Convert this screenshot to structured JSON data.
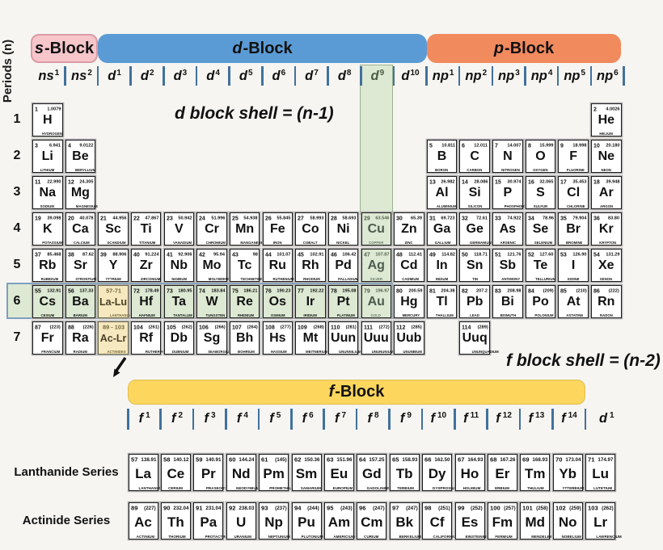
{
  "axis": {
    "periods_label": "Periods (n)",
    "period_numbers": [
      "1",
      "2",
      "3",
      "4",
      "5",
      "6",
      "7"
    ]
  },
  "block_headers": {
    "s": {
      "letter": "s",
      "suffix": "-Block"
    },
    "d": {
      "letter": "d",
      "suffix": "-Block"
    },
    "p": {
      "letter": "p",
      "suffix": "-Block"
    },
    "f": {
      "letter": "f",
      "suffix": "-Block"
    }
  },
  "annotations": {
    "d_shell": "d block shell = (n-1)",
    "f_shell": "f block shell = (n-2)"
  },
  "series": {
    "lanthanide_label": "Lanthanide Series",
    "actinide_label": "Actinide Series"
  },
  "orbital_row": [
    {
      "base": "ns",
      "sup": "1",
      "col": 1
    },
    {
      "base": "ns",
      "sup": "2",
      "col": 2
    },
    {
      "base": "d",
      "sup": "1",
      "col": 3
    },
    {
      "base": "d",
      "sup": "2",
      "col": 4
    },
    {
      "base": "d",
      "sup": "3",
      "col": 5
    },
    {
      "base": "d",
      "sup": "4",
      "col": 6
    },
    {
      "base": "d",
      "sup": "5",
      "col": 7
    },
    {
      "base": "d",
      "sup": "6",
      "col": 8
    },
    {
      "base": "d",
      "sup": "7",
      "col": 9
    },
    {
      "base": "d",
      "sup": "8",
      "col": 10
    },
    {
      "base": "d",
      "sup": "9",
      "col": 11,
      "hl": true
    },
    {
      "base": "d",
      "sup": "10",
      "col": 12
    },
    {
      "base": "np",
      "sup": "1",
      "col": 13
    },
    {
      "base": "np",
      "sup": "2",
      "col": 14
    },
    {
      "base": "np",
      "sup": "3",
      "col": 15
    },
    {
      "base": "np",
      "sup": "4",
      "col": 16
    },
    {
      "base": "np",
      "sup": "5",
      "col": 17
    },
    {
      "base": "np",
      "sup": "6",
      "col": 18
    }
  ],
  "f_orbital_row": [
    {
      "base": "f",
      "sup": "1"
    },
    {
      "base": "f",
      "sup": "2"
    },
    {
      "base": "f",
      "sup": "3"
    },
    {
      "base": "f",
      "sup": "4"
    },
    {
      "base": "f",
      "sup": "5"
    },
    {
      "base": "f",
      "sup": "6"
    },
    {
      "base": "f",
      "sup": "7"
    },
    {
      "base": "f",
      "sup": "8"
    },
    {
      "base": "f",
      "sup": "9"
    },
    {
      "base": "f",
      "sup": "10"
    },
    {
      "base": "f",
      "sup": "11"
    },
    {
      "base": "f",
      "sup": "12"
    },
    {
      "base": "f",
      "sup": "13"
    },
    {
      "base": "f",
      "sup": "14"
    },
    {
      "base": "d",
      "sup": "1",
      "outside": true
    }
  ],
  "elements": [
    {
      "z": "1",
      "mass": "1.0079",
      "sym": "H",
      "name": "HYDROGEN",
      "period": 1,
      "col": 1
    },
    {
      "z": "2",
      "mass": "4.0026",
      "sym": "He",
      "name": "HELIUM",
      "period": 1,
      "col": 18
    },
    {
      "z": "3",
      "mass": "6.941",
      "sym": "Li",
      "name": "LITHIUM",
      "period": 2,
      "col": 1
    },
    {
      "z": "4",
      "mass": "9.0122",
      "sym": "Be",
      "name": "BERYLLIUM",
      "period": 2,
      "col": 2
    },
    {
      "z": "5",
      "mass": "10.811",
      "sym": "B",
      "name": "BORON",
      "period": 2,
      "col": 13
    },
    {
      "z": "6",
      "mass": "12.011",
      "sym": "C",
      "name": "CARBON",
      "period": 2,
      "col": 14
    },
    {
      "z": "7",
      "mass": "14.007",
      "sym": "N",
      "name": "NITROGEN",
      "period": 2,
      "col": 15
    },
    {
      "z": "8",
      "mass": "15.999",
      "sym": "O",
      "name": "OXYGEN",
      "period": 2,
      "col": 16
    },
    {
      "z": "9",
      "mass": "18.998",
      "sym": "F",
      "name": "FLUORINE",
      "period": 2,
      "col": 17
    },
    {
      "z": "10",
      "mass": "20.180",
      "sym": "Ne",
      "name": "NEON",
      "period": 2,
      "col": 18
    },
    {
      "z": "11",
      "mass": "22.990",
      "sym": "Na",
      "name": "SODIUM",
      "period": 3,
      "col": 1
    },
    {
      "z": "12",
      "mass": "24.305",
      "sym": "Mg",
      "name": "MAGNESIUM",
      "period": 3,
      "col": 2
    },
    {
      "z": "13",
      "mass": "26.982",
      "sym": "Al",
      "name": "ALUMINIUM",
      "period": 3,
      "col": 13
    },
    {
      "z": "14",
      "mass": "28.086",
      "sym": "Si",
      "name": "SILICON",
      "period": 3,
      "col": 14
    },
    {
      "z": "15",
      "mass": "30.974",
      "sym": "P",
      "name": "PHOSPHORUS",
      "period": 3,
      "col": 15
    },
    {
      "z": "16",
      "mass": "32.065",
      "sym": "S",
      "name": "SULFUR",
      "period": 3,
      "col": 16
    },
    {
      "z": "17",
      "mass": "35.453",
      "sym": "Cl",
      "name": "CHLORINE",
      "period": 3,
      "col": 17
    },
    {
      "z": "18",
      "mass": "39.948",
      "sym": "Ar",
      "name": "ARGON",
      "period": 3,
      "col": 18
    },
    {
      "z": "19",
      "mass": "39.098",
      "sym": "K",
      "name": "POTASSIUM",
      "period": 4,
      "col": 1
    },
    {
      "z": "20",
      "mass": "40.078",
      "sym": "Ca",
      "name": "CALCIUM",
      "period": 4,
      "col": 2
    },
    {
      "z": "21",
      "mass": "44.956",
      "sym": "Sc",
      "name": "SCANDIUM",
      "period": 4,
      "col": 3
    },
    {
      "z": "22",
      "mass": "47.867",
      "sym": "Ti",
      "name": "TITANIUM",
      "period": 4,
      "col": 4
    },
    {
      "z": "23",
      "mass": "50.942",
      "sym": "V",
      "name": "VANADIUM",
      "period": 4,
      "col": 5
    },
    {
      "z": "24",
      "mass": "51.996",
      "sym": "Cr",
      "name": "CHROMIUM",
      "period": 4,
      "col": 6
    },
    {
      "z": "25",
      "mass": "54.938",
      "sym": "Mn",
      "name": "MANGANESE",
      "period": 4,
      "col": 7
    },
    {
      "z": "26",
      "mass": "55.845",
      "sym": "Fe",
      "name": "IRON",
      "period": 4,
      "col": 8
    },
    {
      "z": "27",
      "mass": "58.993",
      "sym": "Co",
      "name": "COBALT",
      "period": 4,
      "col": 9
    },
    {
      "z": "28",
      "mass": "58.693",
      "sym": "Ni",
      "name": "NICKEL",
      "period": 4,
      "col": 10
    },
    {
      "z": "29",
      "mass": "63.546",
      "sym": "Cu",
      "name": "COPPER",
      "period": 4,
      "col": 11,
      "hl": "green",
      "muted": true
    },
    {
      "z": "30",
      "mass": "65.39",
      "sym": "Zn",
      "name": "ZINC",
      "period": 4,
      "col": 12
    },
    {
      "z": "31",
      "mass": "69.723",
      "sym": "Ga",
      "name": "GALLIUM",
      "period": 4,
      "col": 13
    },
    {
      "z": "32",
      "mass": "72.61",
      "sym": "Ge",
      "name": "GERMANIUM",
      "period": 4,
      "col": 14
    },
    {
      "z": "33",
      "mass": "74.922",
      "sym": "As",
      "name": "ARSENIC",
      "period": 4,
      "col": 15
    },
    {
      "z": "34",
      "mass": "78.96",
      "sym": "Se",
      "name": "SELENIUM",
      "period": 4,
      "col": 16
    },
    {
      "z": "35",
      "mass": "79.904",
      "sym": "Br",
      "name": "BROMINE",
      "period": 4,
      "col": 17
    },
    {
      "z": "36",
      "mass": "83.80",
      "sym": "Kr",
      "name": "KRYPTON",
      "period": 4,
      "col": 18
    },
    {
      "z": "37",
      "mass": "85.468",
      "sym": "Rb",
      "name": "RUBIDIUM",
      "period": 5,
      "col": 1
    },
    {
      "z": "38",
      "mass": "87.62",
      "sym": "Sr",
      "name": "STRONTIUM",
      "period": 5,
      "col": 2
    },
    {
      "z": "39",
      "mass": "88.906",
      "sym": "Y",
      "name": "YTTRIUM",
      "period": 5,
      "col": 3
    },
    {
      "z": "40",
      "mass": "91.224",
      "sym": "Zr",
      "name": "ZIRCONIUM",
      "period": 5,
      "col": 4
    },
    {
      "z": "41",
      "mass": "92.906",
      "sym": "Nb",
      "name": "NIOBIUM",
      "period": 5,
      "col": 5
    },
    {
      "z": "42",
      "mass": "95.94",
      "sym": "Mo",
      "name": "MOLYBDENUM",
      "period": 5,
      "col": 6
    },
    {
      "z": "43",
      "mass": "98",
      "sym": "Tc",
      "name": "TECHNETIUM",
      "period": 5,
      "col": 7
    },
    {
      "z": "44",
      "mass": "101.07",
      "sym": "Ru",
      "name": "RUTHENIUM",
      "period": 5,
      "col": 8
    },
    {
      "z": "45",
      "mass": "102.91",
      "sym": "Rh",
      "name": "RHODIUM",
      "period": 5,
      "col": 9
    },
    {
      "z": "46",
      "mass": "106.42",
      "sym": "Pd",
      "name": "PALLADIUM",
      "period": 5,
      "col": 10
    },
    {
      "z": "47",
      "mass": "107.87",
      "sym": "Ag",
      "name": "SILVER",
      "period": 5,
      "col": 11,
      "hl": "green",
      "muted": true
    },
    {
      "z": "48",
      "mass": "112.41",
      "sym": "Cd",
      "name": "CADMIUM",
      "period": 5,
      "col": 12
    },
    {
      "z": "49",
      "mass": "114.82",
      "sym": "In",
      "name": "INDIUM",
      "period": 5,
      "col": 13
    },
    {
      "z": "50",
      "mass": "118.71",
      "sym": "Sn",
      "name": "TIN",
      "period": 5,
      "col": 14
    },
    {
      "z": "51",
      "mass": "121.76",
      "sym": "Sb",
      "name": "ANTIMONY",
      "period": 5,
      "col": 15
    },
    {
      "z": "52",
      "mass": "127.60",
      "sym": "Te",
      "name": "TELLURIUM",
      "period": 5,
      "col": 16
    },
    {
      "z": "53",
      "mass": "126.90",
      "sym": "I",
      "name": "IODINE",
      "period": 5,
      "col": 17
    },
    {
      "z": "54",
      "mass": "131.29",
      "sym": "Xe",
      "name": "XENON",
      "period": 5,
      "col": 18
    },
    {
      "z": "55",
      "mass": "132.91",
      "sym": "Cs",
      "name": "CESIUM",
      "period": 6,
      "col": 1,
      "hl": "green"
    },
    {
      "z": "56",
      "mass": "137.33",
      "sym": "Ba",
      "name": "BARIUM",
      "period": 6,
      "col": 2,
      "hl": "green"
    },
    {
      "z": "57-71",
      "mass": "",
      "sym": "La-Lu",
      "name": "LANTHANIDES",
      "period": 6,
      "col": 3,
      "hl": "yellow",
      "range": true
    },
    {
      "z": "72",
      "mass": "178.49",
      "sym": "Hf",
      "name": "HAFNIUM",
      "period": 6,
      "col": 4,
      "hl": "green"
    },
    {
      "z": "73",
      "mass": "180.95",
      "sym": "Ta",
      "name": "TANTALUM",
      "period": 6,
      "col": 5,
      "hl": "green"
    },
    {
      "z": "74",
      "mass": "183.84",
      "sym": "W",
      "name": "TUNGSTEN",
      "period": 6,
      "col": 6,
      "hl": "green"
    },
    {
      "z": "75",
      "mass": "186.21",
      "sym": "Re",
      "name": "RHENIUM",
      "period": 6,
      "col": 7,
      "hl": "green"
    },
    {
      "z": "76",
      "mass": "190.23",
      "sym": "Os",
      "name": "OSMIUM",
      "period": 6,
      "col": 8,
      "hl": "green"
    },
    {
      "z": "77",
      "mass": "192.22",
      "sym": "Ir",
      "name": "IRIDIUM",
      "period": 6,
      "col": 9,
      "hl": "green"
    },
    {
      "z": "78",
      "mass": "195.08",
      "sym": "Pt",
      "name": "PLATINUM",
      "period": 6,
      "col": 10,
      "hl": "green"
    },
    {
      "z": "79",
      "mass": "196.97",
      "sym": "Au",
      "name": "GOLD",
      "period": 6,
      "col": 11,
      "hl": "green",
      "muted": true
    },
    {
      "z": "80",
      "mass": "200.59",
      "sym": "Hg",
      "name": "MERCURY",
      "period": 6,
      "col": 12
    },
    {
      "z": "81",
      "mass": "204.38",
      "sym": "Tl",
      "name": "THALLIUM",
      "period": 6,
      "col": 13
    },
    {
      "z": "82",
      "mass": "207.2",
      "sym": "Pb",
      "name": "LEAD",
      "period": 6,
      "col": 14
    },
    {
      "z": "83",
      "mass": "208.98",
      "sym": "Bi",
      "name": "BISMUTH",
      "period": 6,
      "col": 15
    },
    {
      "z": "84",
      "mass": "(209)",
      "sym": "Po",
      "name": "POLONIUM",
      "period": 6,
      "col": 16
    },
    {
      "z": "85",
      "mass": "(210)",
      "sym": "At",
      "name": "ASTATINE",
      "period": 6,
      "col": 17
    },
    {
      "z": "86",
      "mass": "(222)",
      "sym": "Rn",
      "name": "RADON",
      "period": 6,
      "col": 18
    },
    {
      "z": "87",
      "mass": "(223)",
      "sym": "Fr",
      "name": "FRANCIUM",
      "period": 7,
      "col": 1
    },
    {
      "z": "88",
      "mass": "(226)",
      "sym": "Ra",
      "name": "RADIUM",
      "period": 7,
      "col": 2
    },
    {
      "z": "89 - 103",
      "mass": "",
      "sym": "Ac-Lr",
      "name": "ACTINIDES",
      "period": 7,
      "col": 3,
      "hl": "yellow",
      "range": true
    },
    {
      "z": "104",
      "mass": "(261)",
      "sym": "Rf",
      "name": "RUTHERFORDIUM",
      "period": 7,
      "col": 4
    },
    {
      "z": "105",
      "mass": "(262)",
      "sym": "Db",
      "name": "DUBNIUM",
      "period": 7,
      "col": 5
    },
    {
      "z": "106",
      "mass": "(266)",
      "sym": "Sg",
      "name": "SEABORGIUM",
      "period": 7,
      "col": 6
    },
    {
      "z": "107",
      "mass": "(264)",
      "sym": "Bh",
      "name": "BOHRIUM",
      "period": 7,
      "col": 7
    },
    {
      "z": "108",
      "mass": "(277)",
      "sym": "Hs",
      "name": "HASSIUM",
      "period": 7,
      "col": 8
    },
    {
      "z": "109",
      "mass": "(268)",
      "sym": "Mt",
      "name": "MEITNERIUM",
      "period": 7,
      "col": 9
    },
    {
      "z": "110",
      "mass": "(281)",
      "sym": "Uun",
      "name": "UNUNNILIUM",
      "period": 7,
      "col": 10
    },
    {
      "z": "111",
      "mass": "(272)",
      "sym": "Uuu",
      "name": "UNUNUNIUM",
      "period": 7,
      "col": 11
    },
    {
      "z": "112",
      "mass": "(285)",
      "sym": "Uub",
      "name": "UNUNBIUM",
      "period": 7,
      "col": 12
    },
    {
      "z": "114",
      "mass": "(289)",
      "sym": "Uuq",
      "name": "UNUNQUADIUM",
      "period": 7,
      "col": 14
    }
  ],
  "lanthanides": [
    {
      "z": "57",
      "mass": "138.91",
      "sym": "La",
      "name": "LANTHANUM"
    },
    {
      "z": "58",
      "mass": "140.12",
      "sym": "Ce",
      "name": "CERIUM"
    },
    {
      "z": "59",
      "mass": "140.91",
      "sym": "Pr",
      "name": "PRASEODYMIUM"
    },
    {
      "z": "60",
      "mass": "144.24",
      "sym": "Nd",
      "name": "NEODYMIUM"
    },
    {
      "z": "61",
      "mass": "(145)",
      "sym": "Pm",
      "name": "PROMETHIUM"
    },
    {
      "z": "62",
      "mass": "150.36",
      "sym": "Sm",
      "name": "SAMARIUM"
    },
    {
      "z": "63",
      "mass": "151.96",
      "sym": "Eu",
      "name": "EUROPIUM"
    },
    {
      "z": "64",
      "mass": "157.25",
      "sym": "Gd",
      "name": "GADOLINIUM"
    },
    {
      "z": "65",
      "mass": "158.93",
      "sym": "Tb",
      "name": "TERBIUM"
    },
    {
      "z": "66",
      "mass": "162.50",
      "sym": "Dy",
      "name": "DYSPROSIUM"
    },
    {
      "z": "67",
      "mass": "164.93",
      "sym": "Ho",
      "name": "HOLMIUM"
    },
    {
      "z": "68",
      "mass": "167.26",
      "sym": "Er",
      "name": "ERBIUM"
    },
    {
      "z": "69",
      "mass": "168.93",
      "sym": "Tm",
      "name": "THULIUM"
    },
    {
      "z": "70",
      "mass": "173.04",
      "sym": "Yb",
      "name": "YTTERBIUM"
    },
    {
      "z": "71",
      "mass": "174.97",
      "sym": "Lu",
      "name": "LUTETIUM"
    }
  ],
  "actinides": [
    {
      "z": "89",
      "mass": "(227)",
      "sym": "Ac",
      "name": "ACTINIUM"
    },
    {
      "z": "90",
      "mass": "232.04",
      "sym": "Th",
      "name": "THORIUM"
    },
    {
      "z": "91",
      "mass": "231.04",
      "sym": "Pa",
      "name": "PROTACTINIUM"
    },
    {
      "z": "92",
      "mass": "238.03",
      "sym": "U",
      "name": "URANIUM"
    },
    {
      "z": "93",
      "mass": "(237)",
      "sym": "Np",
      "name": "NEPTUNIUM"
    },
    {
      "z": "94",
      "mass": "(244)",
      "sym": "Pu",
      "name": "PLUTONIUM"
    },
    {
      "z": "95",
      "mass": "(243)",
      "sym": "Am",
      "name": "AMERICIUM"
    },
    {
      "z": "96",
      "mass": "(247)",
      "sym": "Cm",
      "name": "CURIUM"
    },
    {
      "z": "97",
      "mass": "(247)",
      "sym": "Bk",
      "name": "BERKELIUM"
    },
    {
      "z": "98",
      "mass": "(251)",
      "sym": "Cf",
      "name": "CALIFORNIUM"
    },
    {
      "z": "99",
      "mass": "(252)",
      "sym": "Es",
      "name": "EINSTEINIUM"
    },
    {
      "z": "100",
      "mass": "(257)",
      "sym": "Fm",
      "name": "FERMIUM"
    },
    {
      "z": "101",
      "mass": "(258)",
      "sym": "Md",
      "name": "MENDELEVIUM"
    },
    {
      "z": "102",
      "mass": "(259)",
      "sym": "No",
      "name": "NOBELIUM"
    },
    {
      "z": "103",
      "mass": "(262)",
      "sym": "Lr",
      "name": "LAWRENCIUM"
    }
  ],
  "colors": {
    "bg": "#f6f5f2",
    "s_pink": "#f7c6cb",
    "s_pink_border": "#db9aa6",
    "d_blue": "#5b9bd5",
    "p_orange": "#f18a5d",
    "f_yellow": "#fcd65d",
    "highlight_green": "#dde9d3",
    "range_yellow": "#f6e8bf",
    "tick_blue": "#41719c",
    "band_border": "#7da0bd"
  }
}
